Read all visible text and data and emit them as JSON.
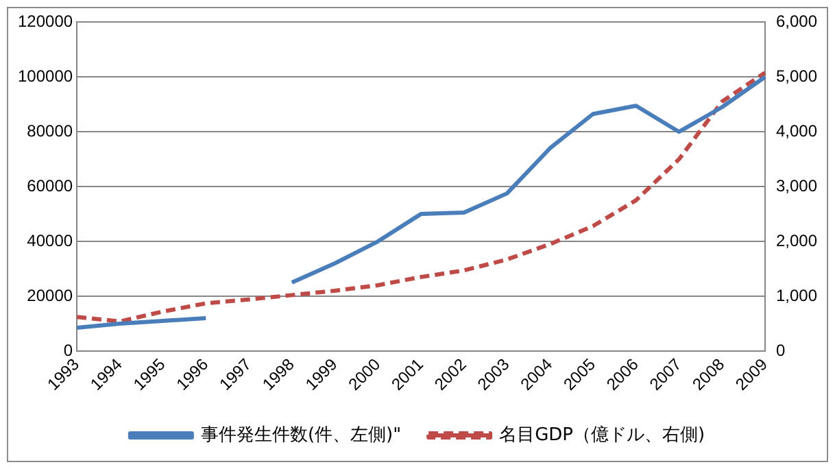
{
  "chart_data": {
    "type": "line",
    "categories": [
      "1993",
      "1994",
      "1995",
      "1996",
      "1997",
      "1998",
      "1999",
      "2000",
      "2001",
      "2002",
      "2003",
      "2004",
      "2005",
      "2006",
      "2007",
      "2008",
      "2009"
    ],
    "series": [
      {
        "name": "事件発生件数(件、左側)\"",
        "color": "#4a7ebb",
        "values": [
          8500,
          10000,
          11000,
          12000,
          null,
          25000,
          32000,
          40000,
          50000,
          50500,
          57500,
          74000,
          86500,
          89500,
          80000,
          89000,
          100000
        ],
        "line_style": "solid"
      },
      {
        "name": "名目GDP（億ドル、右側)",
        "color": "#be4b48",
        "axis": "y2",
        "values": [
          620,
          540,
          720,
          870,
          940,
          1020,
          1100,
          1200,
          1350,
          1470,
          1670,
          1950,
          2280,
          2750,
          3500,
          4550,
          5080
        ],
        "line_style": "dashed"
      }
    ],
    "ylim": [
      0,
      120000
    ],
    "yticks": [
      0,
      20000,
      40000,
      60000,
      80000,
      100000,
      120000
    ],
    "y2lim": [
      0,
      6000
    ],
    "y2ticks": [
      {
        "value": 0,
        "label": "0"
      },
      {
        "value": 1000,
        "label": "1,000"
      },
      {
        "value": 2000,
        "label": "2,000"
      },
      {
        "value": 3000,
        "label": "3,000"
      },
      {
        "value": 4000,
        "label": "4,000"
      },
      {
        "value": 5000,
        "label": "5,000"
      },
      {
        "value": 6000,
        "label": "6,000"
      }
    ],
    "grid": "y",
    "legend": "bottom",
    "marker": "none"
  }
}
